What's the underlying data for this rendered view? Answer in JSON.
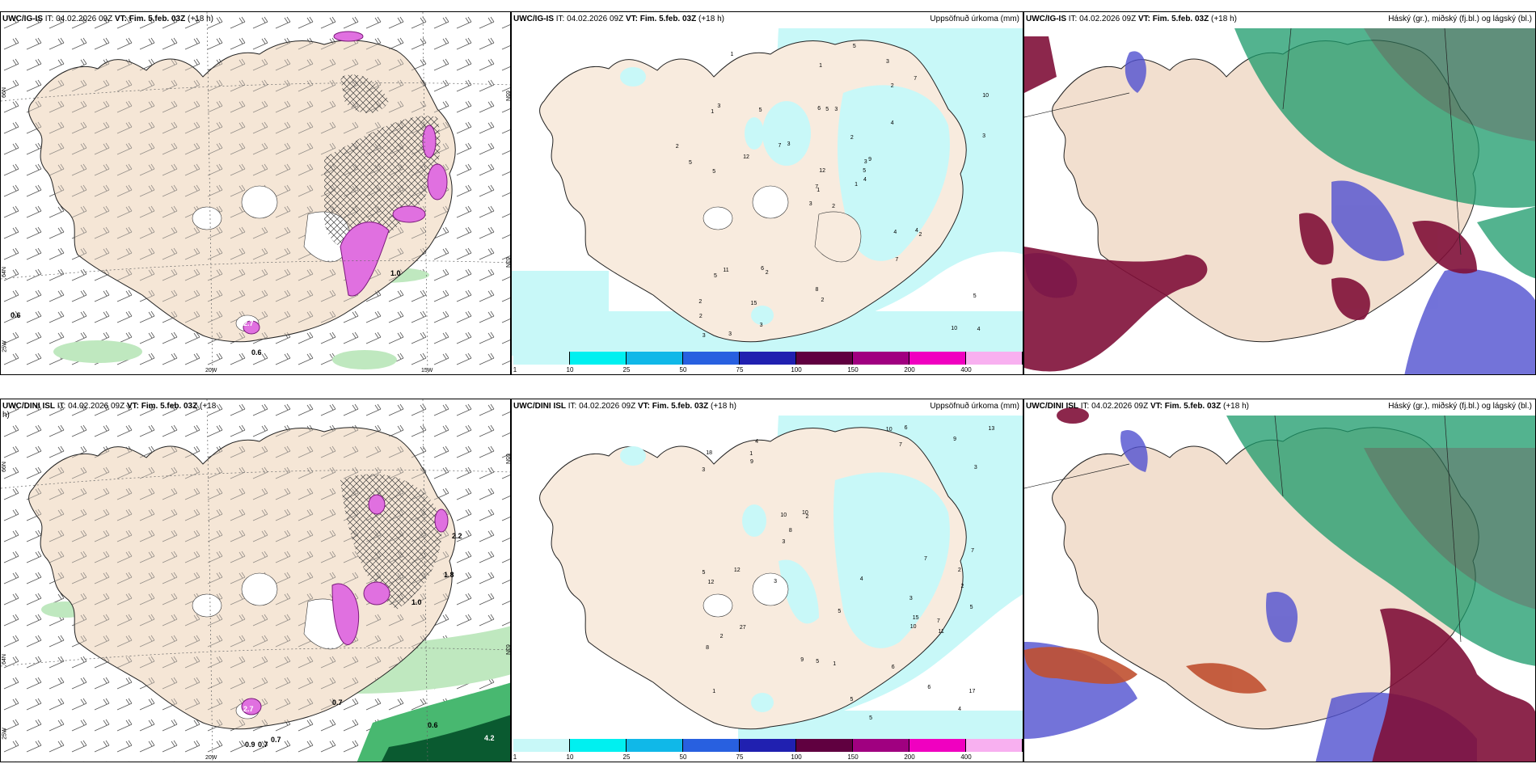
{
  "panels": {
    "p1": {
      "model": "UWC/IG-IS",
      "run": "IT: 04.02.2026 09Z",
      "valid": "VT: Fim. 5.feb. 03Z",
      "lead": "(+18 h)",
      "right_title": ""
    },
    "p2": {
      "model": "UWC/IG-IS",
      "run": "IT: 04.02.2026 09Z",
      "valid": "VT: Fim. 5.feb. 03Z",
      "lead": "(+18 h)",
      "right_title": "Uppsöfnuð úrkoma (mm)"
    },
    "p3": {
      "model": "UWC/IG-IS",
      "run": "IT: 04.02.2026 09Z",
      "valid": "VT: Fim. 5.feb. 03Z",
      "lead": "(+18 h)",
      "right_title": "Háský (gr.), miðský (fj.bl.) og lágský (bl.)"
    },
    "p4": {
      "model": "UWC/DINI ISL",
      "run": "IT: 04.02.2026 09Z",
      "valid": "VT: Fim. 5.feb. 03Z",
      "lead": "(+18",
      "lead2": "h)",
      "right_title": ""
    },
    "p5": {
      "model": "UWC/DINI ISL",
      "run": "IT: 04.02.2026 09Z",
      "valid": "VT: Fim. 5.feb. 03Z",
      "lead": "(+18 h)",
      "right_title": "Uppsöfnuð úrkoma (mm)"
    },
    "p6": {
      "model": "UWC/DINI ISL",
      "run": "IT: 04.02.2026 09Z",
      "valid": "VT: Fim. 5.feb. 03Z",
      "lead": "(+18 h)",
      "right_title": "Háský (gr.), miðský (fj.bl.) og lágský (bl.)"
    }
  },
  "axes": {
    "lon_20": "20W",
    "lon_15": "15W",
    "lon_25": "25W",
    "lat_66": "66N",
    "lat_64": "64N",
    "lat_65": "65N",
    "lat_63": "63N"
  },
  "wind_panel_top": {
    "labels": [
      "0.6",
      "0.6",
      "1.0",
      "2.7"
    ]
  },
  "wind_panel_bottom": {
    "labels": [
      "0.7",
      "0.9",
      "0.7",
      "0.7",
      "0.6",
      "1.0",
      "1.8",
      "2.7",
      "4.2",
      "2.2"
    ]
  },
  "colorbar": {
    "ticks": [
      "1",
      "10",
      "25",
      "50",
      "75",
      "100",
      "150",
      "200",
      "400"
    ],
    "colors": [
      "#c8f8f8",
      "#00f0f0",
      "#10b8e8",
      "#2860e0",
      "#2020b0",
      "#600040",
      "#a00080",
      "#f000c0",
      "#f8b0f0"
    ]
  },
  "precip_top": {
    "values": [
      "2",
      "1",
      "1",
      "2",
      "3",
      "2",
      "3",
      "3",
      "2",
      "1",
      "1",
      "4",
      "5",
      "10",
      "3",
      "4",
      "3",
      "6",
      "2",
      "11",
      "3",
      "2",
      "15",
      "5",
      "9",
      "2",
      "3",
      "1",
      "5",
      "4",
      "3",
      "7",
      "8",
      "12",
      "5",
      "7",
      "6",
      "10",
      "5",
      "4",
      "5",
      "7",
      "12",
      "7",
      "3",
      "2",
      "5",
      "3",
      "2",
      "4",
      "5"
    ]
  },
  "precip_bottom": {
    "values": [
      "3",
      "2",
      "1",
      "4",
      "2",
      "6",
      "8",
      "7",
      "10",
      "5",
      "3",
      "5",
      "18",
      "17",
      "9",
      "7",
      "5",
      "4",
      "10",
      "27",
      "13",
      "9",
      "3",
      "5",
      "10",
      "1",
      "15",
      "12",
      "9",
      "7",
      "5",
      "6",
      "8",
      "3",
      "2",
      "11",
      "10",
      "12",
      "1",
      "2",
      "3",
      "6",
      "4",
      "5",
      "7"
    ]
  },
  "colors": {
    "land": "#f5e6d6",
    "landcloud": "#efdccb",
    "coast": "#222222",
    "sea": "#ffffff",
    "precip_light": "#c8f8f8",
    "wind_magenta": "#e070e0",
    "hatch": "#555555",
    "green_light": "#a8e6a8",
    "green_mid": "#48b870",
    "green_dark": "#0a5a30",
    "cloud_high_green": "#18a870",
    "cloud_mid_blue": "#4848c8",
    "cloud_low_red": "#801038"
  }
}
